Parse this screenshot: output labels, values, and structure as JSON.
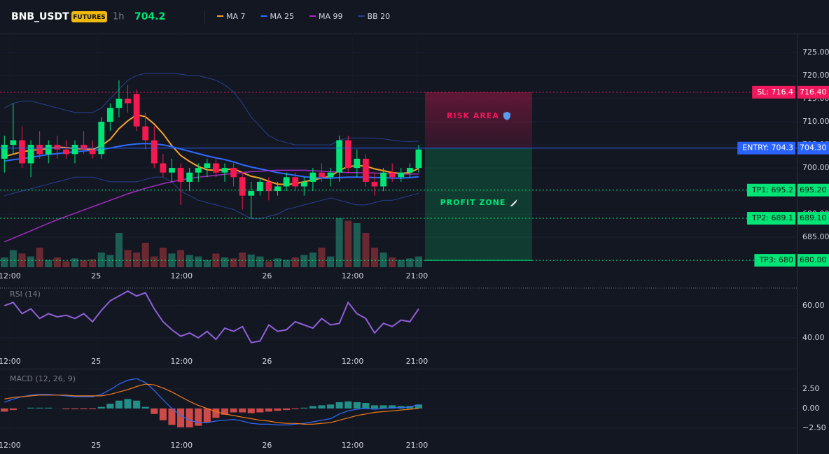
{
  "header": {
    "symbol": "BNB_USDT",
    "badge": "FUTURES",
    "interval": "1h",
    "price": 704.2,
    "price_color": "#00e676"
  },
  "chart_data": [
    {
      "type": "candlestick",
      "up_color": "#00e676",
      "down_color": "#f6194f",
      "xlim": [
        -0.5,
        89.9
      ],
      "xticks": [
        {
          "value": 0.6,
          "label": "12:00"
        },
        {
          "value": 10.4,
          "label": "25"
        },
        {
          "value": 20.1,
          "label": "12:00"
        },
        {
          "value": 29.8,
          "label": "26"
        },
        {
          "value": 39.5,
          "label": "12:00"
        },
        {
          "value": 46.8,
          "label": "21:00"
        }
      ],
      "ylim": [
        678.5,
        729.1
      ],
      "yticks": [
        {
          "value": 725,
          "label": "725.00"
        },
        {
          "value": 720,
          "label": "720.00"
        },
        {
          "value": 715,
          "label": "715.00"
        },
        {
          "value": 710,
          "label": "710.00"
        },
        {
          "value": 705,
          "label": "705.00"
        },
        {
          "value": 700,
          "label": "700.00"
        },
        {
          "value": 695,
          "label": "695.00"
        },
        {
          "value": 690,
          "label": "690.00"
        },
        {
          "value": 685,
          "label": "685.00"
        }
      ],
      "open": [
        702,
        705,
        706,
        701,
        705,
        703,
        705,
        704,
        703,
        705,
        704,
        703,
        710,
        713,
        715,
        716,
        709,
        706,
        701,
        699,
        700,
        697,
        699,
        700,
        701,
        699,
        700,
        698,
        694,
        695,
        697,
        695,
        696,
        698,
        696,
        697,
        699,
        698,
        699,
        706,
        700,
        702,
        697,
        696,
        699,
        698,
        699,
        700
      ],
      "high": [
        707,
        714,
        709,
        706,
        708,
        706,
        707,
        706,
        706,
        708,
        706,
        711,
        714,
        719,
        718,
        717,
        712,
        709,
        703,
        702,
        701,
        700,
        701,
        702,
        702,
        701,
        701,
        699,
        697,
        698,
        698,
        697,
        699,
        699,
        698,
        700,
        701,
        700,
        707,
        707,
        704,
        703,
        699,
        700,
        701,
        700,
        701,
        705
      ],
      "low": [
        699,
        703,
        700,
        698,
        702,
        701,
        702,
        702,
        701,
        703,
        702,
        702,
        708,
        711,
        712,
        708,
        704,
        700,
        698,
        697,
        692,
        695,
        697,
        698,
        698,
        697,
        696,
        691,
        689,
        694,
        693,
        694,
        695,
        695,
        694,
        695,
        697,
        696,
        697,
        699,
        698,
        696,
        694,
        695,
        697,
        697,
        698,
        699
      ],
      "close": [
        705,
        706,
        701,
        705,
        703,
        705,
        704,
        703,
        705,
        704,
        703,
        710,
        713,
        715,
        714,
        709,
        706,
        701,
        699,
        700,
        697,
        699,
        700,
        701,
        699,
        700,
        698,
        694,
        695,
        697,
        695,
        696,
        698,
        696,
        697,
        699,
        698,
        699,
        706,
        700,
        702,
        697,
        696,
        699,
        698,
        699,
        700,
        704
      ],
      "volume": {
        "vlim": [
          0,
          100
        ],
        "values": [
          20,
          35,
          28,
          22,
          40,
          15,
          20,
          12,
          18,
          14,
          16,
          30,
          25,
          70,
          35,
          30,
          50,
          22,
          40,
          28,
          35,
          25,
          22,
          15,
          28,
          20,
          18,
          30,
          26,
          22,
          12,
          18,
          15,
          20,
          25,
          30,
          40,
          22,
          100,
          95,
          90,
          70,
          40,
          30,
          20,
          15,
          18,
          22
        ]
      },
      "series": [
        {
          "name": "MA 7",
          "color": "#f7a128",
          "values": [
            702.5,
            703,
            703.5,
            703.8,
            704,
            704.2,
            704.5,
            704.4,
            704.2,
            704.1,
            704,
            704.8,
            706.2,
            708.5,
            710.2,
            711.5,
            711.1,
            709.5,
            707.4,
            704.8,
            702.7,
            701.4,
            700.3,
            699.6,
            699.5,
            699.6,
            699.8,
            699,
            698.2,
            697.8,
            697.1,
            696.5,
            696.4,
            696.6,
            697,
            697.4,
            697.8,
            698.2,
            699.5,
            700.3,
            700.5,
            700.4,
            699.8,
            699.4,
            699,
            698.8,
            699,
            699.9
          ]
        },
        {
          "name": "MA 25",
          "color": "#2f6bff",
          "values": [
            701.5,
            701.8,
            702,
            702.3,
            702.6,
            702.9,
            703.1,
            703.3,
            703.5,
            703.7,
            703.8,
            704,
            704.3,
            704.7,
            705,
            705.2,
            705.3,
            705.2,
            705,
            704.6,
            704.1,
            703.6,
            703.1,
            702.6,
            702.2,
            701.8,
            701.3,
            700.7,
            700.2,
            699.8,
            699.4,
            699,
            698.7,
            698.4,
            698.1,
            697.9,
            697.8,
            697.8,
            697.9,
            698,
            698,
            698,
            697.9,
            697.9,
            697.8,
            697.8,
            697.9,
            698.1
          ]
        },
        {
          "name": "MA 99",
          "color": "#a22bc0",
          "values": [
            684,
            684.8,
            685.6,
            686.4,
            687.2,
            688,
            688.8,
            689.5,
            690.2,
            690.9,
            691.6,
            692.3,
            693,
            693.7,
            694.4,
            695,
            695.6,
            696.1,
            696.6,
            697,
            697.4,
            697.7,
            698,
            698.2,
            698.4,
            698.6,
            698.8,
            699,
            699.2,
            699.3,
            699.4,
            699.5,
            699.5,
            699.5,
            699.5,
            699.4,
            699.3,
            699.2,
            699.1,
            699,
            699,
            698.9,
            698.9,
            698.8,
            698.8,
            698.7,
            698.7,
            698.7
          ]
        }
      ],
      "bands": {
        "name": "BB 20",
        "color": "#2a3f8f",
        "upper": [
          713,
          714,
          714.5,
          714.5,
          714,
          713.5,
          713,
          712.5,
          712,
          712,
          712,
          713,
          715,
          717,
          719,
          720,
          720.5,
          720.5,
          720.5,
          720.5,
          720.3,
          720,
          720,
          719.5,
          719,
          718,
          716.5,
          714,
          711,
          709,
          707,
          706,
          705.5,
          705,
          705,
          705,
          705,
          705,
          706,
          706.5,
          706.5,
          706.5,
          706.5,
          706.3,
          706,
          705.8,
          705.7,
          705.8
        ],
        "lower": [
          694,
          694.5,
          695,
          695.5,
          696,
          696.5,
          697,
          697.5,
          698,
          698,
          698,
          697.5,
          697,
          697,
          697,
          697,
          697.5,
          698,
          698,
          697,
          695,
          694,
          693,
          692.5,
          692,
          691.5,
          691,
          690,
          689,
          689,
          689.5,
          690,
          691,
          691.5,
          692,
          692.5,
          693,
          693.5,
          693,
          692.5,
          692,
          692,
          692.5,
          693,
          693,
          693.5,
          694,
          694.5
        ]
      },
      "levels": [
        {
          "tag": "SL: 716.4",
          "value": 716.4,
          "label": "716.40",
          "color": "#f0185c"
        },
        {
          "tag": "ENTRY: 704.3",
          "value": 704.3,
          "label": "704.30",
          "color": "#2962ff"
        },
        {
          "tag": "TP1: 695.2",
          "value": 695.2,
          "label": "695.20",
          "color": "#00e676"
        },
        {
          "tag": "TP2: 689.1",
          "value": 689.1,
          "label": "689.10",
          "color": "#00e676"
        },
        {
          "tag": "TP3: 680",
          "value": 680,
          "label": "680.00",
          "color": "#00e676"
        }
      ],
      "zones": [
        {
          "label": "RISK AREA",
          "color": "#f0185c"
        },
        {
          "label": "PROFIT ZONE",
          "color": "#00e676"
        }
      ]
    },
    {
      "type": "line",
      "title": "RSI (14)",
      "color": "#8e5fd8",
      "ylim": [
        30.4,
        71.7
      ],
      "yticks": [
        {
          "value": 60,
          "label": "60.00"
        },
        {
          "value": 40,
          "label": "40.00"
        }
      ],
      "upper_level": 70.9,
      "values": [
        60,
        62,
        55,
        58,
        52,
        55,
        53,
        54,
        52,
        55,
        50,
        57,
        63,
        66,
        69,
        66,
        68,
        58,
        50,
        45,
        41,
        43,
        40,
        44,
        39,
        46,
        44,
        47,
        37,
        38,
        48,
        44,
        45,
        50,
        48,
        46,
        52,
        48,
        49,
        62,
        55,
        52,
        43,
        49,
        47,
        51,
        50,
        58
      ]
    },
    {
      "type": "macd",
      "title": "MACD (12, 26, 9)",
      "up_color": "#26a69a",
      "down_color": "#ef5350",
      "ylim": [
        -3.66,
        4.8
      ],
      "yticks": [
        {
          "value": 2.5,
          "label": "2.50"
        },
        {
          "value": 0,
          "label": "0.00"
        },
        {
          "value": -2.5,
          "label": "−2.50"
        }
      ],
      "macd": {
        "color": "#2f6bff",
        "values": [
          0.8,
          1.2,
          1.5,
          1.7,
          1.8,
          1.8,
          1.7,
          1.6,
          1.5,
          1.5,
          1.5,
          1.8,
          2.4,
          3.1,
          3.6,
          3.8,
          3.3,
          2.3,
          1.1,
          0,
          -0.9,
          -1.5,
          -1.8,
          -1.8,
          -1.6,
          -1.5,
          -1.4,
          -1.6,
          -1.9,
          -2,
          -2,
          -2.1,
          -2.1,
          -2,
          -1.9,
          -1.7,
          -1.5,
          -1.3,
          -0.7,
          -0.3,
          -0.1,
          0,
          -0.1,
          0,
          0.1,
          0.1,
          0.2,
          0.5
        ]
      },
      "signal": {
        "color": "#f07a1a",
        "values": [
          1.2,
          1.4,
          1.5,
          1.6,
          1.7,
          1.7,
          1.7,
          1.7,
          1.6,
          1.6,
          1.6,
          1.6,
          1.8,
          2.1,
          2.4,
          2.8,
          3.1,
          3,
          2.6,
          2.1,
          1.5,
          0.9,
          0.4,
          0,
          -0.4,
          -0.7,
          -0.9,
          -1.1,
          -1.3,
          -1.5,
          -1.6,
          -1.8,
          -1.9,
          -1.9,
          -2,
          -2,
          -1.9,
          -1.8,
          -1.5,
          -1.2,
          -0.9,
          -0.7,
          -0.5,
          -0.4,
          -0.3,
          -0.2,
          -0.1,
          0
        ]
      },
      "histogram": [
        -0.4,
        -0.2,
        0,
        0.1,
        0.1,
        0.1,
        0,
        -0.1,
        -0.1,
        -0.1,
        -0.1,
        0.2,
        0.6,
        1,
        1.2,
        1,
        0.2,
        -0.7,
        -1.5,
        -2.1,
        -2.4,
        -2.4,
        -2.2,
        -1.8,
        -1.2,
        -0.8,
        -0.5,
        -0.5,
        -0.6,
        -0.5,
        -0.4,
        -0.3,
        -0.2,
        -0.1,
        0.1,
        0.3,
        0.4,
        0.5,
        0.8,
        0.9,
        0.8,
        0.7,
        0.4,
        0.4,
        0.4,
        0.3,
        0.3,
        0.5
      ]
    }
  ]
}
